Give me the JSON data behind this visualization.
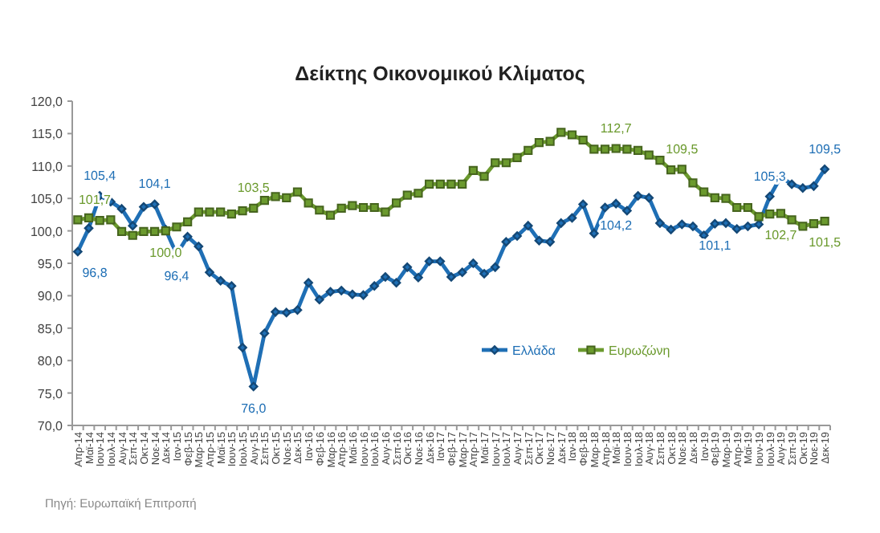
{
  "chart_data": {
    "type": "line",
    "title": "Δείκτης Οικονομικού Κλίματος",
    "categories": [
      "Απρ-14",
      "Μαϊ-14",
      "Ιουν-14",
      "Ιουλ-14",
      "Αυγ-14",
      "Σεπ-14",
      "Οκτ-14",
      "Νοε-14",
      "Δεκ-14",
      "Ιαν-15",
      "Φεβ-15",
      "Μαρ-15",
      "Απρ-15",
      "Μαϊ-15",
      "Ιουν-15",
      "Ιουλ-15",
      "Αυγ-15",
      "Σεπ-15",
      "Οκτ-15",
      "Νοε-15",
      "Δεκ-15",
      "Ιαν-16",
      "Φεβ-16",
      "Μαρ-16",
      "Απρ-16",
      "Μαϊ-16",
      "Ιουν-16",
      "Ιουλ-16",
      "Αυγ-16",
      "Σεπ-16",
      "Οκτ-16",
      "Νοε-16",
      "Δεκ-16",
      "Ιαν-17",
      "Φεβ-17",
      "Μαρ-17",
      "Απρ-17",
      "Μαϊ-17",
      "Ιουν-17",
      "Ιουλ-17",
      "Αυγ-17",
      "Σεπ-17",
      "Οκτ-17",
      "Νοε-17",
      "Δεκ-17",
      "Ιαν-18",
      "Φεβ-18",
      "Μαρ-18",
      "Απρ-18",
      "Μαϊ-18",
      "Ιουν-18",
      "Ιουλ-18",
      "Αυγ-18",
      "Σεπ-18",
      "Οκτ-18",
      "Νοε-18",
      "Δεκ-18",
      "Ιαν-19",
      "Φεβ-19",
      "Μαρ-19",
      "Απρ-19",
      "Μαϊ-19",
      "Ιουν-19",
      "Ιουλ-19",
      "Αυγ-19",
      "Σεπ-19",
      "Οκτ-19",
      "Νοε-19",
      "Δεκ-19"
    ],
    "series": [
      {
        "name": "Ελλάδα",
        "color": "#1f6fb5",
        "marker": "diamond",
        "values": [
          96.8,
          100.4,
          105.4,
          104.5,
          103.4,
          100.8,
          103.7,
          104.1,
          100.2,
          96.4,
          99.1,
          97.6,
          93.6,
          92.3,
          91.5,
          82.0,
          76.0,
          84.2,
          87.5,
          87.4,
          87.8,
          92.0,
          89.4,
          90.6,
          90.8,
          90.2,
          90.1,
          91.5,
          92.9,
          92.0,
          94.4,
          92.8,
          95.3,
          95.3,
          92.9,
          93.6,
          95.0,
          93.4,
          94.4,
          98.3,
          99.2,
          100.8,
          98.5,
          98.3,
          101.2,
          102.0,
          104.1,
          99.6,
          103.6,
          104.2,
          103.1,
          105.4,
          105.1,
          101.2,
          100.2,
          101.0,
          100.7,
          99.3,
          101.1,
          101.2,
          100.3,
          100.7,
          101.0,
          105.3,
          108.3,
          107.2,
          106.6,
          106.9,
          109.5
        ],
        "value_labels": [
          "96,8",
          null,
          "105,4",
          null,
          null,
          null,
          null,
          "104,1",
          null,
          "96,4",
          null,
          null,
          null,
          null,
          null,
          null,
          "76,0",
          null,
          null,
          null,
          null,
          null,
          null,
          null,
          null,
          null,
          null,
          null,
          null,
          null,
          null,
          null,
          null,
          null,
          null,
          null,
          null,
          null,
          null,
          null,
          null,
          null,
          null,
          null,
          null,
          null,
          null,
          null,
          null,
          "104,2",
          null,
          null,
          null,
          null,
          null,
          null,
          null,
          null,
          "101,1",
          null,
          null,
          null,
          null,
          "105,3",
          null,
          null,
          null,
          null,
          "109,5"
        ]
      },
      {
        "name": "Ευρωζώνη",
        "color": "#6b9a2e",
        "marker": "square",
        "values": [
          101.7,
          102.0,
          101.6,
          101.7,
          99.9,
          99.3,
          99.9,
          99.9,
          100.0,
          100.6,
          101.4,
          102.9,
          102.9,
          102.9,
          102.6,
          103.1,
          103.5,
          104.7,
          105.3,
          105.1,
          106.0,
          104.3,
          103.2,
          102.4,
          103.5,
          103.9,
          103.6,
          103.6,
          102.9,
          104.3,
          105.5,
          105.8,
          107.2,
          107.2,
          107.2,
          107.2,
          109.3,
          108.4,
          110.5,
          110.5,
          111.3,
          112.4,
          113.6,
          113.8,
          115.2,
          114.8,
          114.0,
          112.6,
          112.6,
          112.7,
          112.6,
          112.4,
          111.7,
          110.9,
          109.4,
          109.5,
          107.4,
          106.0,
          105.1,
          105.0,
          103.6,
          103.6,
          102.2,
          102.6,
          102.7,
          101.7,
          100.7,
          101.1,
          101.5
        ],
        "value_labels": [
          "101,7",
          null,
          null,
          null,
          null,
          null,
          null,
          null,
          "100,0",
          null,
          null,
          null,
          null,
          null,
          null,
          null,
          "103,5",
          null,
          null,
          null,
          null,
          null,
          null,
          null,
          null,
          null,
          null,
          null,
          null,
          null,
          null,
          null,
          null,
          null,
          null,
          null,
          null,
          null,
          null,
          null,
          null,
          null,
          null,
          null,
          null,
          null,
          null,
          null,
          null,
          "112,7",
          null,
          null,
          null,
          null,
          null,
          "109,5",
          null,
          null,
          null,
          null,
          null,
          null,
          null,
          null,
          "102,7",
          null,
          null,
          null,
          "101,5"
        ]
      }
    ],
    "ylim": [
      70,
      120
    ],
    "yticks": [
      {
        "value": 70,
        "label": "70,0"
      },
      {
        "value": 75,
        "label": "75,0"
      },
      {
        "value": 80,
        "label": "80,0"
      },
      {
        "value": 85,
        "label": "85,0"
      },
      {
        "value": 90,
        "label": "90,0"
      },
      {
        "value": 95,
        "label": "95,0"
      },
      {
        "value": 100,
        "label": "100,0"
      },
      {
        "value": 105,
        "label": "105,0"
      },
      {
        "value": 110,
        "label": "110,0"
      },
      {
        "value": 115,
        "label": "115,0"
      },
      {
        "value": 120,
        "label": "120,0"
      }
    ],
    "grid": false,
    "legend": "bottom right",
    "annotations": [
      "Πηγή: Ευρωπαϊκή Επιτροπή"
    ]
  }
}
